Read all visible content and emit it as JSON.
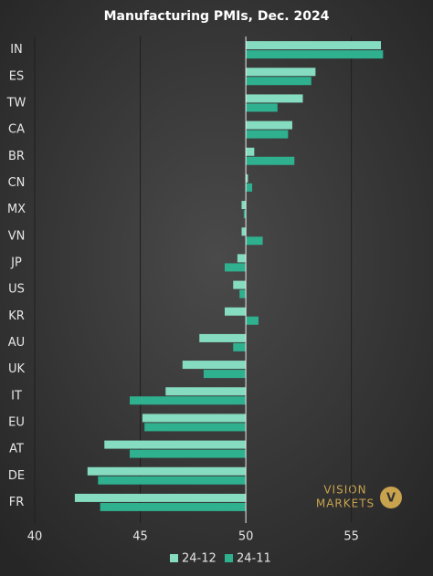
{
  "chart_data": {
    "type": "hbar",
    "title": "Manufacturing PMIs, Dec. 2024",
    "categories": [
      "IN",
      "ES",
      "TW",
      "CA",
      "BR",
      "CN",
      "MX",
      "VN",
      "JP",
      "US",
      "KR",
      "AU",
      "UK",
      "IT",
      "EU",
      "AT",
      "DE",
      "FR"
    ],
    "series": [
      {
        "name": "24-12",
        "color": "#86dcc0",
        "values": [
          56.4,
          53.3,
          52.7,
          52.2,
          50.4,
          50.1,
          49.8,
          49.8,
          49.6,
          49.4,
          49.0,
          47.8,
          47.0,
          46.2,
          45.1,
          43.3,
          42.5,
          41.9
        ]
      },
      {
        "name": "24-11",
        "color": "#2fb08f",
        "values": [
          56.5,
          53.1,
          51.5,
          52.0,
          52.3,
          50.3,
          49.9,
          50.8,
          49.0,
          49.7,
          50.6,
          49.4,
          48.0,
          44.5,
          45.2,
          44.5,
          43.0,
          43.1
        ]
      }
    ],
    "base": 50,
    "xlim": [
      40,
      58
    ],
    "xticks": [
      40,
      45,
      50,
      55
    ],
    "grid": true,
    "legend": "bottom"
  },
  "logo": {
    "line1": "VISION",
    "line2": "MARKETS",
    "mark": "V"
  }
}
